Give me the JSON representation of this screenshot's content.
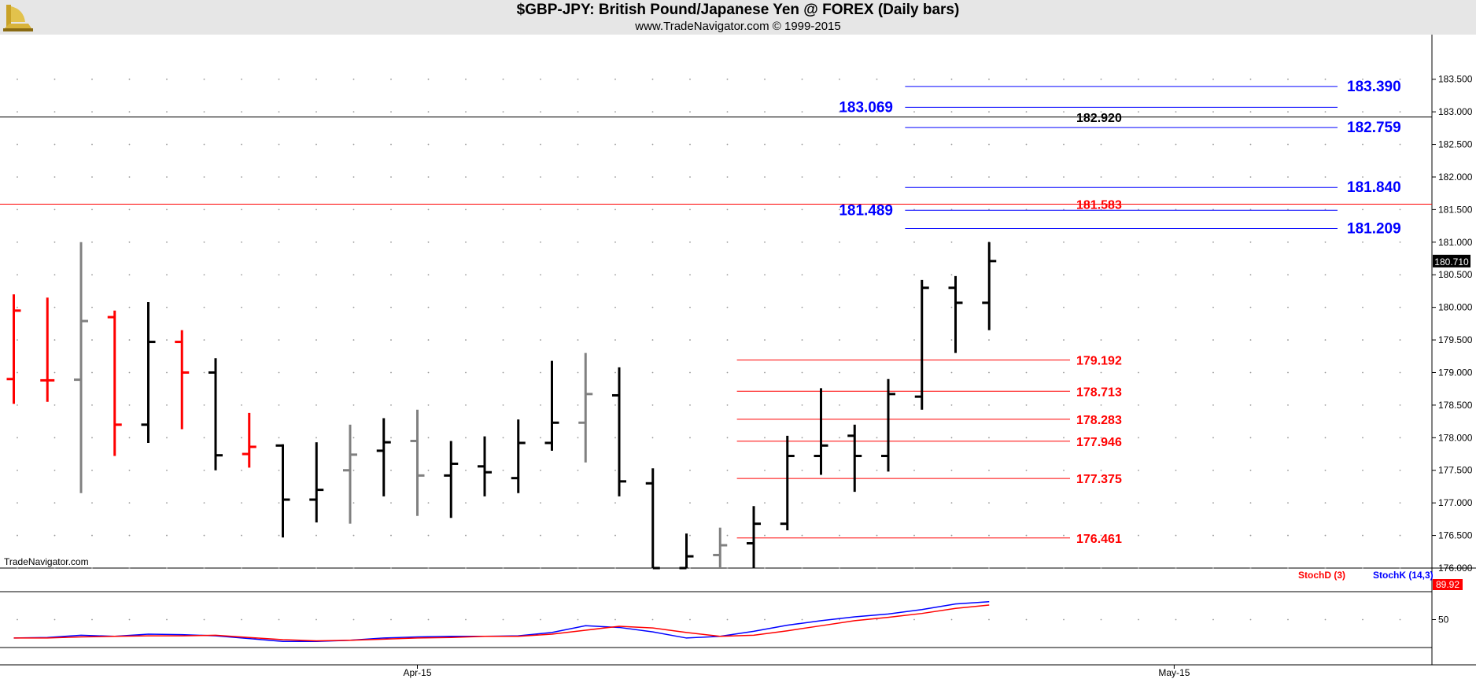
{
  "header": {
    "title": "$GBP-JPY:  British Pound/Japanese Yen @ FOREX  (Daily bars)",
    "subtitle": "www.TradeNavigator.com © 1999-2015",
    "brand": "TradeNavigator.com"
  },
  "colors": {
    "up_bar": "#000000",
    "down_bar": "#ff0000",
    "neutral_bar": "#808080",
    "blue_level": "#0000ff",
    "red_level": "#ff0000",
    "stoch_k": "#0000ff",
    "stoch_d": "#ff0000"
  },
  "chart_data": [
    {
      "type": "ohlc",
      "title": "$GBP-JPY:  British Pound/Japanese Yen @ FOREX  (Daily bars)",
      "ylim": [
        176.0,
        183.75
      ],
      "y_ticks": [
        "176.000",
        "176.500",
        "177.000",
        "177.500",
        "178.000",
        "178.500",
        "179.000",
        "179.500",
        "180.000",
        "180.500",
        "181.000",
        "181.500",
        "182.000",
        "182.500",
        "183.000",
        "183.500"
      ],
      "x_labels": [
        {
          "label": "Apr-15",
          "bar": 12
        },
        {
          "label": "May-15",
          "bar": 34.5
        }
      ],
      "last_price": "180.710",
      "bars": [
        {
          "o": 178.9,
          "h": 180.2,
          "l": 178.52,
          "c": 179.95,
          "color": "down"
        },
        {
          "o": 178.88,
          "h": 180.15,
          "l": 178.55,
          "c": 178.88,
          "color": "down"
        },
        {
          "o": 178.89,
          "h": 181.0,
          "l": 177.15,
          "c": 179.79,
          "color": "neutral"
        },
        {
          "o": 179.85,
          "h": 179.95,
          "l": 177.72,
          "c": 178.2,
          "color": "down"
        },
        {
          "o": 178.2,
          "h": 180.08,
          "l": 177.92,
          "c": 179.47,
          "color": "up"
        },
        {
          "o": 179.47,
          "h": 179.65,
          "l": 178.13,
          "c": 179.0,
          "color": "down"
        },
        {
          "o": 179.0,
          "h": 179.22,
          "l": 177.5,
          "c": 177.73,
          "color": "up"
        },
        {
          "o": 177.75,
          "h": 178.38,
          "l": 177.54,
          "c": 177.86,
          "color": "down"
        },
        {
          "o": 177.88,
          "h": 177.9,
          "l": 176.47,
          "c": 177.05,
          "color": "up"
        },
        {
          "o": 177.05,
          "h": 177.93,
          "l": 176.7,
          "c": 177.2,
          "color": "up"
        },
        {
          "o": 177.5,
          "h": 178.2,
          "l": 176.68,
          "c": 177.74,
          "color": "neutral"
        },
        {
          "o": 177.8,
          "h": 178.3,
          "l": 177.1,
          "c": 177.93,
          "color": "up"
        },
        {
          "o": 177.95,
          "h": 178.43,
          "l": 176.8,
          "c": 177.42,
          "color": "neutral"
        },
        {
          "o": 177.42,
          "h": 177.95,
          "l": 176.77,
          "c": 177.6,
          "color": "up"
        },
        {
          "o": 177.56,
          "h": 178.02,
          "l": 177.1,
          "c": 177.47,
          "color": "up"
        },
        {
          "o": 177.38,
          "h": 178.28,
          "l": 177.15,
          "c": 177.92,
          "color": "up"
        },
        {
          "o": 177.92,
          "h": 179.18,
          "l": 177.8,
          "c": 178.23,
          "color": "up"
        },
        {
          "o": 178.23,
          "h": 179.3,
          "l": 177.62,
          "c": 178.67,
          "color": "neutral"
        },
        {
          "o": 178.65,
          "h": 179.08,
          "l": 177.1,
          "c": 177.33,
          "color": "up"
        },
        {
          "o": 177.3,
          "h": 177.53,
          "l": 176.0,
          "c": 176.0,
          "color": "up"
        },
        {
          "o": 176.0,
          "h": 176.53,
          "l": 176.0,
          "c": 176.18,
          "color": "up"
        },
        {
          "o": 176.2,
          "h": 176.62,
          "l": 176.0,
          "c": 176.35,
          "color": "neutral"
        },
        {
          "o": 176.38,
          "h": 176.95,
          "l": 176.0,
          "c": 176.68,
          "color": "up"
        },
        {
          "o": 176.68,
          "h": 178.03,
          "l": 176.58,
          "c": 177.72,
          "color": "up"
        },
        {
          "o": 177.72,
          "h": 178.76,
          "l": 177.43,
          "c": 177.88,
          "color": "up"
        },
        {
          "o": 178.03,
          "h": 178.2,
          "l": 177.17,
          "c": 177.72,
          "color": "up"
        },
        {
          "o": 177.72,
          "h": 178.9,
          "l": 177.48,
          "c": 178.67,
          "color": "up"
        },
        {
          "o": 178.63,
          "h": 180.42,
          "l": 178.43,
          "c": 180.3,
          "color": "up"
        },
        {
          "o": 180.3,
          "h": 180.48,
          "l": 179.3,
          "c": 180.07,
          "color": "up"
        },
        {
          "o": 180.07,
          "h": 181.0,
          "l": 179.65,
          "c": 180.71,
          "color": "up"
        }
      ],
      "levels": [
        {
          "value": 183.39,
          "label": "183.390",
          "color": "blue",
          "from_bar": 26.5,
          "label_side": "right"
        },
        {
          "value": 183.069,
          "label": "183.069",
          "color": "blue",
          "from_bar": 26.5,
          "label_side": "left"
        },
        {
          "value": 182.92,
          "label": "182.920",
          "color": "black",
          "from_bar": -1,
          "label_side": "mid"
        },
        {
          "value": 182.759,
          "label": "182.759",
          "color": "blue",
          "from_bar": 26.5,
          "label_side": "right"
        },
        {
          "value": 181.84,
          "label": "181.840",
          "color": "blue",
          "from_bar": 26.5,
          "label_side": "right"
        },
        {
          "value": 181.583,
          "label": "181.583",
          "color": "red",
          "from_bar": -1,
          "label_side": "mid"
        },
        {
          "value": 181.489,
          "label": "181.489",
          "color": "blue",
          "from_bar": 26.5,
          "label_side": "left"
        },
        {
          "value": 181.209,
          "label": "181.209",
          "color": "blue",
          "from_bar": 26.5,
          "label_side": "right"
        },
        {
          "value": 179.192,
          "label": "179.192",
          "color": "red",
          "from_bar": 21.5,
          "label_side": "mid"
        },
        {
          "value": 178.713,
          "label": "178.713",
          "color": "red",
          "from_bar": 21.5,
          "label_side": "mid"
        },
        {
          "value": 178.283,
          "label": "178.283",
          "color": "red",
          "from_bar": 21.5,
          "label_side": "mid"
        },
        {
          "value": 177.946,
          "label": "177.946",
          "color": "red",
          "from_bar": 21.5,
          "label_side": "mid"
        },
        {
          "value": 177.375,
          "label": "177.375",
          "color": "red",
          "from_bar": 21.5,
          "label_side": "mid"
        },
        {
          "value": 176.461,
          "label": "176.461",
          "color": "red",
          "from_bar": 21.5,
          "label_side": "mid"
        }
      ]
    },
    {
      "type": "line",
      "ylim": [
        0,
        100
      ],
      "y_ticks": [
        "50"
      ],
      "readout": "89.92",
      "series": [
        {
          "name": "StochK (14,3)",
          "color": "blue",
          "values": [
            17,
            18,
            22,
            20,
            24,
            23,
            21,
            16,
            11,
            11,
            13,
            17,
            19,
            20,
            20,
            21,
            27,
            39,
            36,
            28,
            17,
            20,
            29,
            40,
            48,
            55,
            60,
            68,
            78,
            82
          ]
        },
        {
          "name": "StochD (3)",
          "color": "red",
          "values": [
            17,
            17,
            19,
            20,
            21,
            21,
            22,
            18,
            14,
            12,
            13,
            15,
            17,
            18,
            20,
            20,
            24,
            31,
            38,
            35,
            27,
            20,
            22,
            30,
            39,
            48,
            54,
            61,
            70,
            76
          ]
        }
      ]
    }
  ]
}
